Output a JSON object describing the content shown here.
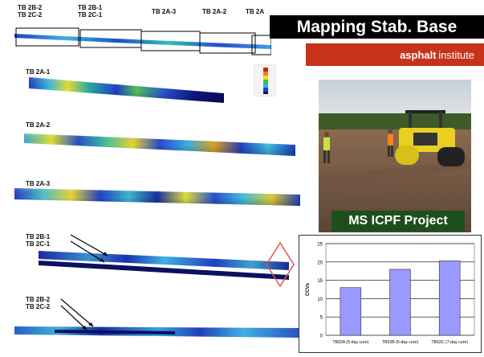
{
  "headline": "Mapping Stab. Base",
  "logo": {
    "word_bold": "asphalt",
    "word_light": "institute"
  },
  "overview_labels": [
    {
      "l1": "TB 2B-2",
      "l2": "TB 2C-2"
    },
    {
      "l1": "TB 2B-1",
      "l2": "TB 2C-1"
    },
    {
      "l1": "TB 2A-3",
      "l2": ""
    },
    {
      "l1": "TB 2A-2",
      "l2": ""
    },
    {
      "l1": "TB 2A",
      "l2": ""
    }
  ],
  "section_labels": {
    "a1": "TB 2A-1",
    "a2": "TB 2A-2",
    "a3": "TB 2A-3",
    "b1": "TB 2B-1",
    "c1": "TB 2C-1",
    "b2": "TB 2B-2",
    "c2": "TB 2C-2"
  },
  "photo_caption": "MS ICPF Project",
  "colors": {
    "bar": "#9999ff",
    "title_bg": "#000000",
    "logo_bg": "#c8321a",
    "caption_bg": "#1c4f1c",
    "highlight": "#e0534a"
  },
  "chart_data": {
    "type": "bar",
    "categories": [
      "TB02A (5-day cure)",
      "TB02B (6-day cure)",
      "TB02C (7-day cure)"
    ],
    "values": [
      13,
      18,
      20.3
    ],
    "ylabel": "CCVs",
    "ylim": [
      0,
      25
    ],
    "yticks": [
      0,
      5,
      10,
      15,
      20,
      25
    ],
    "grid": true,
    "legend": "none"
  }
}
